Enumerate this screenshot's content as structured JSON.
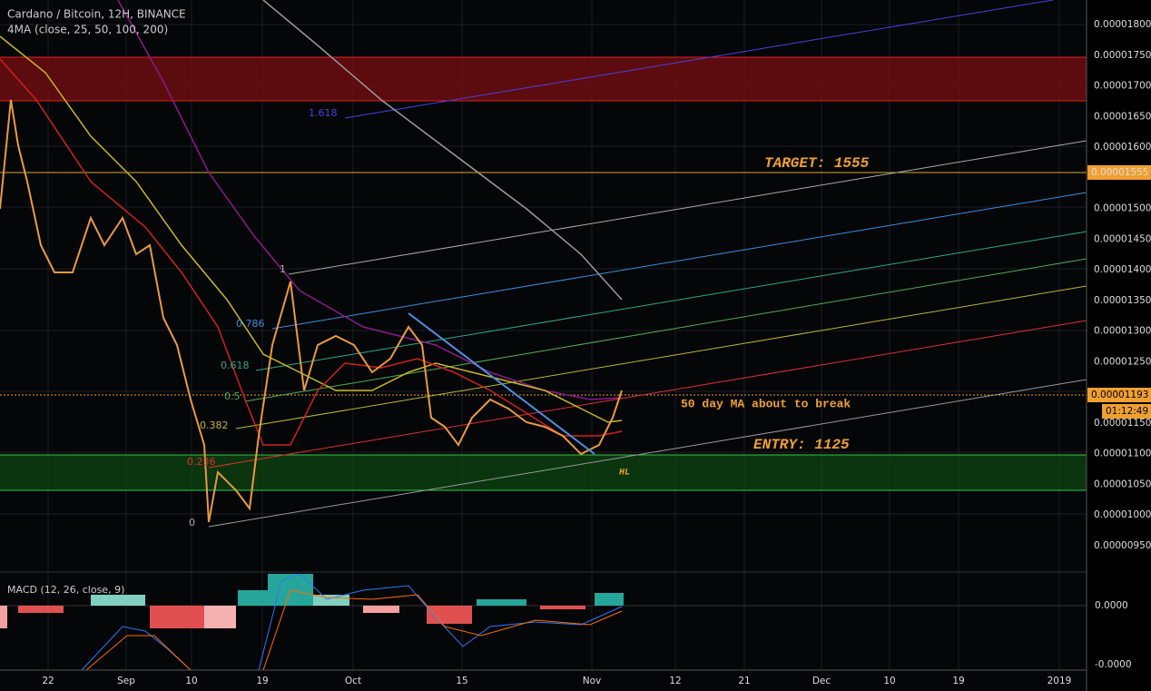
{
  "header": {
    "symbol": "Cardano / Bitcoin, 12H, BINANCE",
    "indicator": "4MA (close, 25, 50, 100, 200)"
  },
  "price_axis": {
    "labels": [
      "0.00001800",
      "0.00001750",
      "0.00001700",
      "0.00001650",
      "0.00001600",
      "0.00001500",
      "0.00001450",
      "0.00001400",
      "0.00001350",
      "0.00001300",
      "0.00001250",
      "0.00001150",
      "0.00001100",
      "0.00001050",
      "0.00001000",
      "0.00000950"
    ],
    "target_price": "0.00001555",
    "current_price": "0.00001193",
    "countdown": "01:12:49"
  },
  "time_axis": {
    "labels": [
      "22",
      "Sep",
      "10",
      "19",
      "Oct",
      "15",
      "Nov",
      "12",
      "21",
      "Dec",
      "10",
      "19",
      "2019"
    ]
  },
  "fib_levels": [
    "1.618",
    "1",
    "0.786",
    "0.618",
    "0.5",
    "0.382",
    "0.236",
    "0"
  ],
  "annotations": {
    "target": "TARGET: 1555",
    "entry": "ENTRY: 1125",
    "ma_note": "50 day MA about to break",
    "hl": "HL"
  },
  "macd": {
    "title": "MACD (12, 26, close, 9)",
    "labels": [
      "0.0000",
      "-0.0000"
    ]
  }
}
